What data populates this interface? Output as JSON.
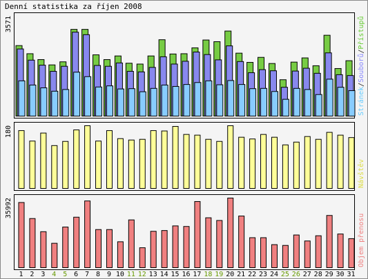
{
  "chart_data": {
    "type": "bar",
    "title": "Denní statistika za říjen 2008",
    "categories": [
      "1",
      "2",
      "3",
      "4",
      "5",
      "6",
      "7",
      "8",
      "9",
      "10",
      "11",
      "12",
      "13",
      "14",
      "15",
      "16",
      "17",
      "18",
      "19",
      "20",
      "21",
      "22",
      "23",
      "24",
      "25",
      "26",
      "27",
      "28",
      "29",
      "30",
      "31"
    ],
    "weekend_categories": [
      "4",
      "5",
      "11",
      "12",
      "18",
      "19",
      "25",
      "26"
    ],
    "panels": [
      {
        "id": "hits",
        "ylabel_max": "3571",
        "ymax": 3571,
        "legend_parts": [
          "Stránek",
          "/",
          "Souborů",
          "/",
          "Přístupů"
        ],
        "legend_colors": [
          "#66ccff",
          "#222222",
          "#8888ff",
          "#222222",
          "#66cc33"
        ],
        "series": [
          {
            "name": "Přístupů",
            "color": "#77cc44",
            "values": [
              2520,
              2230,
              2020,
              1830,
              1940,
              3100,
              3100,
              2190,
              2020,
              2150,
              1890,
              1860,
              2150,
              2730,
              2220,
              2230,
              2440,
              2720,
              2660,
              3040,
              2250,
              1920,
              2100,
              1880,
              1300,
              1930,
              2080,
              1800,
              2890,
              1700,
              1980
            ]
          },
          {
            "name": "Souborů",
            "color": "#8888ee",
            "values": [
              2400,
              2000,
              1820,
              1600,
              1780,
              3000,
              2910,
              1810,
              1780,
              1900,
              1600,
              1580,
              1740,
              2120,
              1860,
              1960,
              2290,
              2200,
              2010,
              2510,
              1950,
              1550,
              1660,
              1620,
              1030,
              1610,
              1710,
              1530,
              2260,
              1480,
              1450
            ]
          },
          {
            "name": "Stránek",
            "color": "#88ccff",
            "values": [
              1260,
              1110,
              1010,
              890,
              950,
              1570,
              1410,
              1040,
              1080,
              970,
              980,
              870,
              990,
              1110,
              1060,
              1130,
              1200,
              1260,
              1120,
              1270,
              1130,
              980,
              990,
              880,
              600,
              990,
              950,
              770,
              1320,
              1030,
              910
            ]
          }
        ]
      },
      {
        "id": "visits",
        "ylabel_max": "180",
        "ymax": 180,
        "legend_parts": [
          "Návštěv"
        ],
        "legend_colors": [
          "#dddd44"
        ],
        "series": [
          {
            "name": "Návštěv",
            "color": "#ffff99",
            "values": [
              166,
              136,
              159,
              123,
              135,
              168,
              180,
              136,
              166,
              143,
              139,
              141,
              166,
              165,
              178,
              155,
              153,
              141,
              135,
              180,
              147,
              142,
              155,
              147,
              125,
              133,
              149,
              141,
              161,
              153,
              146
            ]
          }
        ]
      },
      {
        "id": "traffic",
        "ylabel_max": "35992",
        "ymax": 35992,
        "legend_parts": [
          "Objem přenosu"
        ],
        "legend_colors": [
          "#f08080"
        ],
        "series": [
          {
            "name": "Objem přenosu",
            "color": "#f08080",
            "values": [
              33700,
              25400,
              18600,
              12600,
              21000,
              26100,
              34500,
              19700,
              19700,
              13400,
              24700,
              10300,
              18800,
              19200,
              21600,
              21300,
              34200,
              25800,
              24400,
              36000,
              26700,
              15500,
              15500,
              11900,
              11500,
              16900,
              13800,
              16500,
              27000,
              17400,
              15000
            ]
          }
        ]
      }
    ],
    "colors": {
      "weekday_label": "#000000",
      "weekend_label": "#669900",
      "panel_border": "#000000",
      "background": "#f4f4f4"
    }
  }
}
